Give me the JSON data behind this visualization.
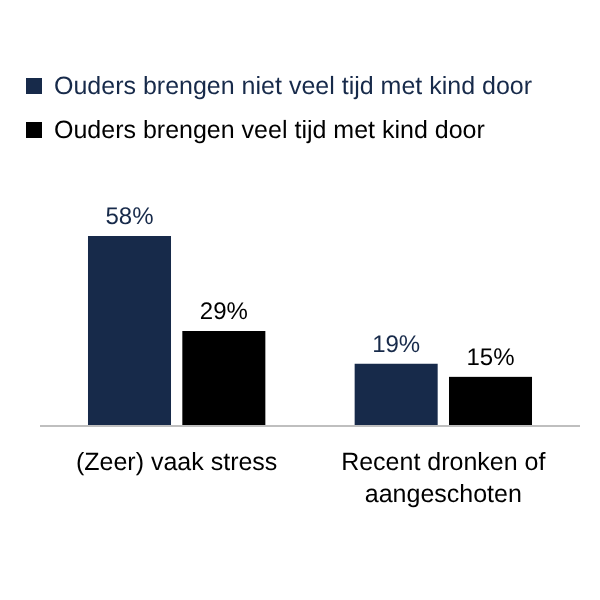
{
  "chart_data": {
    "type": "bar",
    "categories": [
      "(Zeer) vaak stress",
      "Recent dronken of aangeschoten"
    ],
    "series": [
      {
        "name": "Ouders brengen niet veel tijd met kind door",
        "color": "#172a4a",
        "values": [
          58,
          19
        ],
        "value_labels": [
          "58%",
          "19%"
        ]
      },
      {
        "name": "Ouders brengen veel tijd met kind door",
        "color": "#000000",
        "values": [
          29,
          15
        ],
        "value_labels": [
          "29%",
          "15%"
        ]
      }
    ],
    "legend": "top",
    "ylim": [
      0,
      58
    ]
  }
}
